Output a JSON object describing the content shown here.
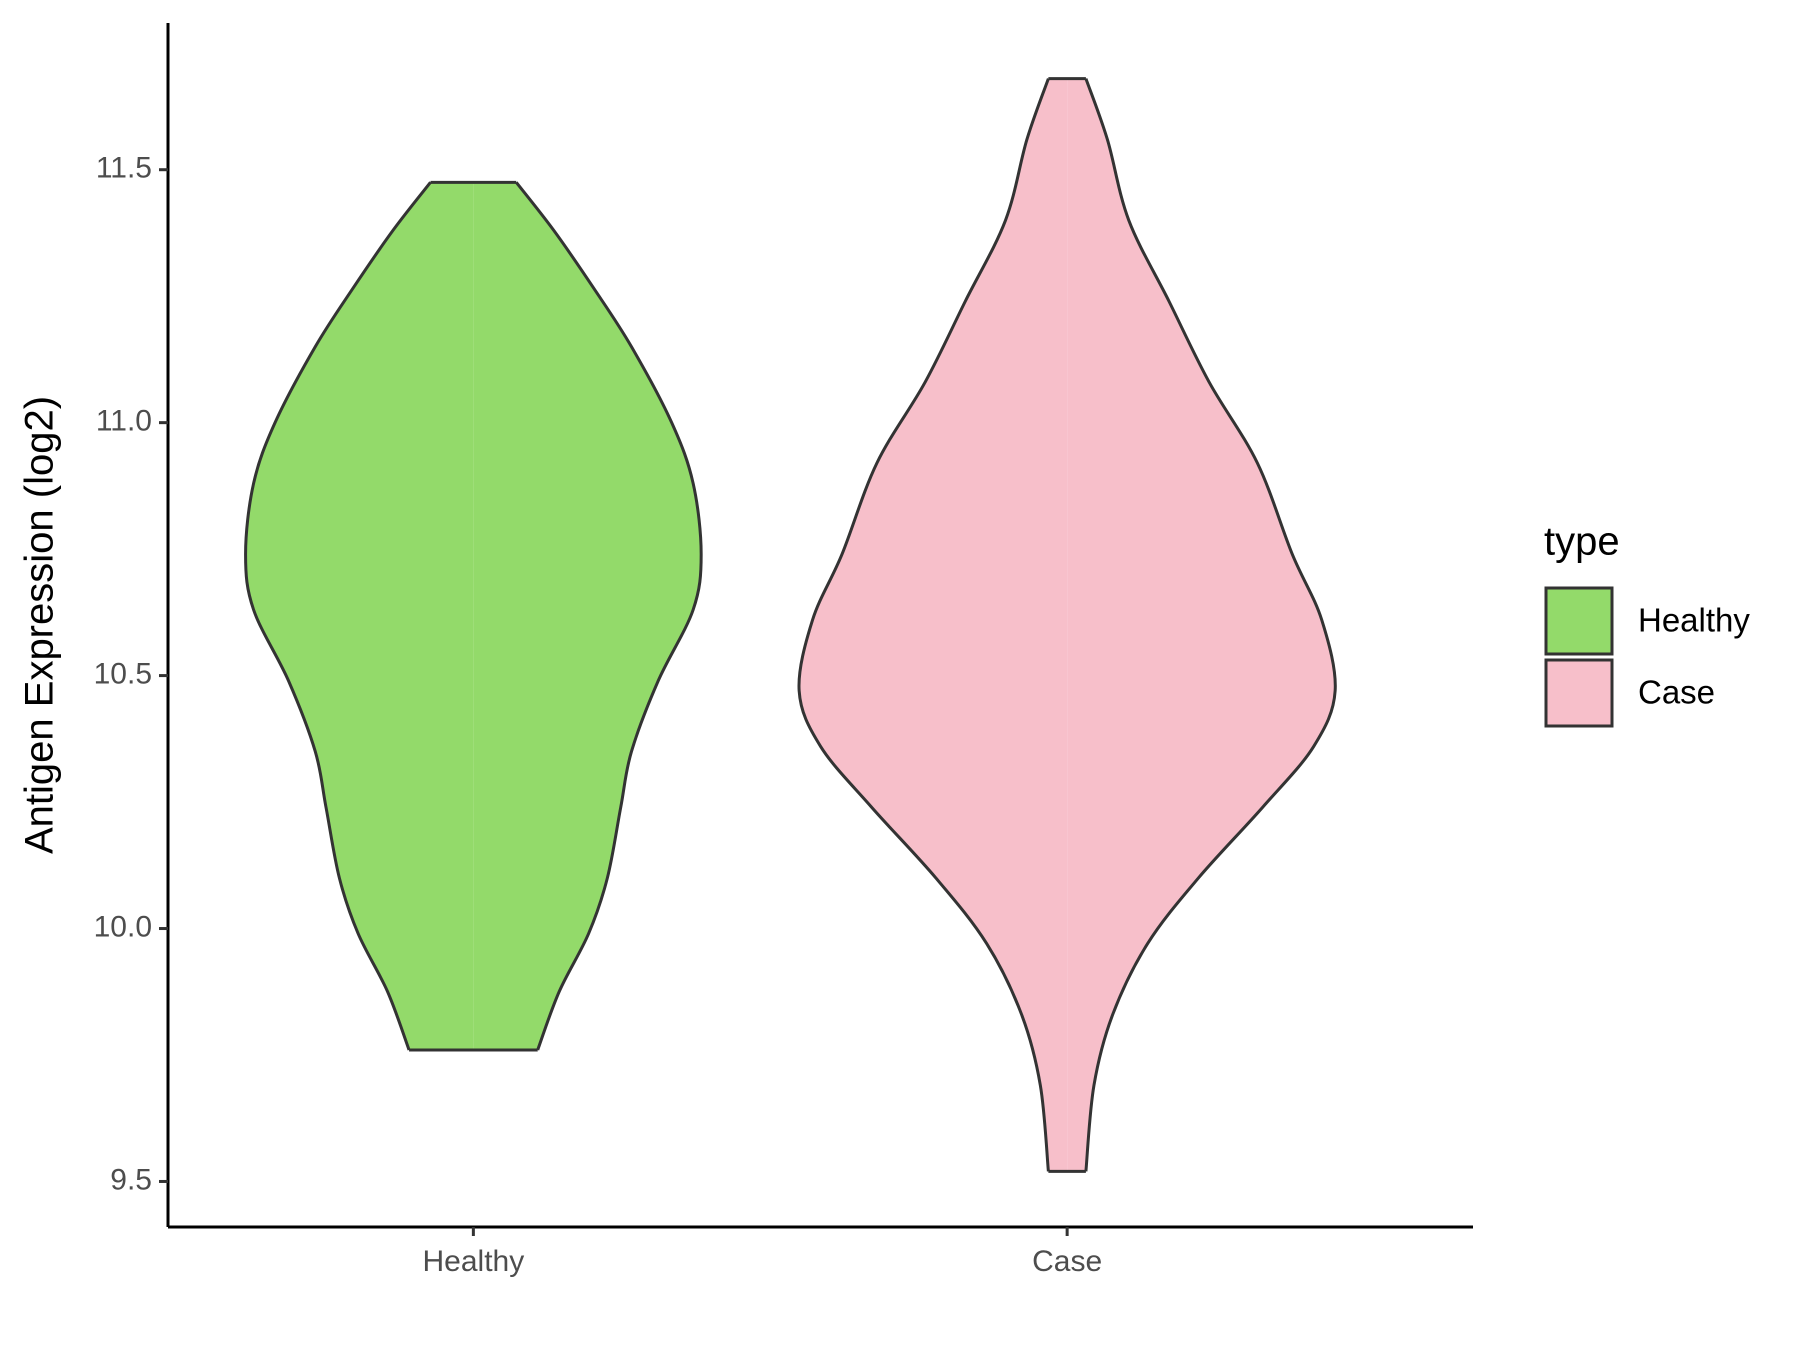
{
  "chart_data": {
    "type": "violin",
    "y_label": "Antigen Expression (log2)",
    "legend_title": "type",
    "categories": [
      "Healthy",
      "Case"
    ],
    "ylim": [
      9.41,
      11.79
    ],
    "yticks": [
      {
        "value": 9.5,
        "label": "9.5"
      },
      {
        "value": 10,
        "label": "10.0"
      },
      {
        "value": 10.5,
        "label": "10.5"
      },
      {
        "value": 11,
        "label": "11.0"
      },
      {
        "value": 11.5,
        "label": "11.5"
      }
    ],
    "series": [
      {
        "name": "Healthy",
        "color": "#93DA6A",
        "y": [
          11.475,
          11.38,
          11.265,
          11.15,
          11.0,
          10.88,
          10.74,
          10.63,
          10.49,
          10.35,
          10.24,
          10.1,
          9.99,
          9.875,
          9.76
        ],
        "density": [
          0.16,
          0.3,
          0.45,
          0.59,
          0.74,
          0.82,
          0.85,
          0.82,
          0.69,
          0.59,
          0.55,
          0.5,
          0.43,
          0.32,
          0.24
        ]
      },
      {
        "name": "Case",
        "color": "#F7BFCA",
        "y": [
          11.68,
          11.56,
          11.4,
          11.24,
          11.08,
          10.92,
          10.74,
          10.61,
          10.47,
          10.36,
          10.24,
          10.1,
          9.97,
          9.83,
          9.69,
          9.52
        ],
        "density": [
          0.07,
          0.15,
          0.23,
          0.38,
          0.53,
          0.71,
          0.84,
          0.95,
          1.0,
          0.92,
          0.73,
          0.49,
          0.3,
          0.17,
          0.1,
          0.07
        ]
      }
    ]
  }
}
